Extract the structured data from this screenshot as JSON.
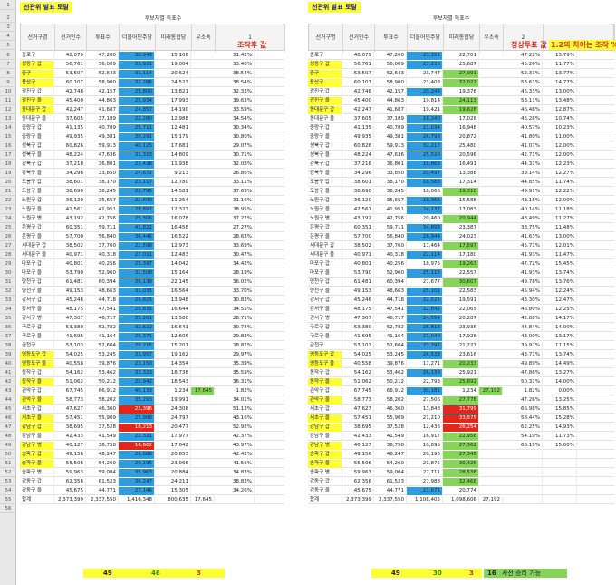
{
  "left": {
    "title": "선관위 발표 토탈",
    "group_header": "후보자별 득표수",
    "headers": [
      "선거구명",
      "선거인수",
      "투표수",
      "더불어민주당",
      "미래통합당",
      "우소속"
    ],
    "extra_header": "1",
    "big_label": "조작후 값",
    "rows": [
      [
        "종로구",
        "48,079",
        "47,200",
        "30,943",
        "15,108",
        "31.42%"
      ],
      [
        "성동구 갑",
        "56,761",
        "56,009",
        "33,921",
        "19,004",
        "33.48%"
      ],
      [
        "중구",
        "53,507",
        "52,643",
        "31,114",
        "20,624",
        "38.54%"
      ],
      [
        "용산구",
        "60,107",
        "58,900",
        "32,286",
        "24,523",
        "38.54%"
      ],
      [
        "광진구 갑",
        "42,748",
        "42,157",
        "25,800",
        "13,821",
        "32.33%"
      ],
      [
        "광진구 을",
        "45,400",
        "44,863",
        "25,934",
        "17,993",
        "39.63%"
      ],
      [
        "동대문구 갑",
        "42,247",
        "41,687",
        "24,857",
        "14,190",
        "33.59%"
      ],
      [
        "동대문구 을",
        "37,605",
        "37,189",
        "22,280",
        "12,988",
        "34.54%"
      ],
      [
        "중랑구 갑",
        "41,135",
        "40,789",
        "25,711",
        "12,481",
        "30.34%"
      ],
      [
        "중랑구 을",
        "49,935",
        "49,381",
        "30,291",
        "15,179",
        "30.80%"
      ],
      [
        "성북구 갑",
        "60,826",
        "59,913",
        "40,125",
        "17,681",
        "29.07%"
      ],
      [
        "성북구 을",
        "48,224",
        "47,636",
        "31,313",
        "14,809",
        "30.71%"
      ],
      [
        "강북구 갑",
        "37,218",
        "36,801",
        "23,428",
        "11,938",
        "32.08%"
      ],
      [
        "강북구 을",
        "34,296",
        "33,850",
        "24,672",
        "9,213",
        "26.86%"
      ],
      [
        "도봉구 갑",
        "38,601",
        "38,170",
        "23,117",
        "12,780",
        "33.11%"
      ],
      [
        "도봉구 을",
        "38,690",
        "38,245",
        "22,795",
        "14,581",
        "37.69%"
      ],
      [
        "노원구 갑",
        "36,120",
        "35,657",
        "22,699",
        "11,254",
        "31.16%"
      ],
      [
        "노원구 을",
        "42,561",
        "41,951",
        "28,897",
        "12,323",
        "28.95%"
      ],
      [
        "노원구 병",
        "43,192",
        "42,756",
        "25,306",
        "16,078",
        "37.22%"
      ],
      [
        "은평구 갑",
        "60,351",
        "59,711",
        "41,822",
        "16,458",
        "27.27%"
      ],
      [
        "은평구 을",
        "57,700",
        "56,840",
        "36,445",
        "16,522",
        "28.63%"
      ],
      [
        "서대문구 갑",
        "38,502",
        "37,760",
        "22,598",
        "12,973",
        "33.69%"
      ],
      [
        "서대문구 을",
        "40,971",
        "40,318",
        "27,011",
        "12,483",
        "30.47%"
      ],
      [
        "마포구 갑",
        "40,801",
        "40,256",
        "25,397",
        "14,042",
        "34.42%"
      ],
      [
        "마포구 을",
        "53,790",
        "52,960",
        "32,508",
        "15,164",
        "28.19%"
      ],
      [
        "양천구 갑",
        "61,481",
        "60,394",
        "36,139",
        "22,145",
        "36.02%"
      ],
      [
        "양천구 을",
        "49,153",
        "48,663",
        "31,035",
        "16,564",
        "33.70%"
      ],
      [
        "강서구 갑",
        "45,246",
        "44,718",
        "29,825",
        "13,948",
        "30.83%"
      ],
      [
        "강서구 을",
        "48,175",
        "47,541",
        "29,835",
        "16,644",
        "34.55%"
      ],
      [
        "강서구 병",
        "47,307",
        "46,717",
        "31,261",
        "13,580",
        "28.71%"
      ],
      [
        "구로구 갑",
        "53,380",
        "52,782",
        "32,622",
        "16,641",
        "30.74%"
      ],
      [
        "구로구 을",
        "41,695",
        "41,164",
        "26,371",
        "12,606",
        "29.83%"
      ],
      [
        "금천구",
        "53,103",
        "52,604",
        "29,215",
        "15,201",
        "28.82%"
      ],
      [
        "영등포구 갑",
        "54,025",
        "53,245",
        "33,957",
        "19,162",
        "29.97%"
      ],
      [
        "영등포구 을",
        "40,558",
        "39,876",
        "23,150",
        "14,354",
        "35.39%"
      ],
      [
        "동작구 갑",
        "54,162",
        "53,462",
        "33,323",
        "18,736",
        "35.59%"
      ],
      [
        "동작구 을",
        "51,062",
        "50,212",
        "29,942",
        "18,543",
        "36.31%"
      ],
      [
        "관악구 갑",
        "67,745",
        "66,912",
        "40,133",
        "1,234",
        "1.82%"
      ],
      [
        "관악구 을",
        "58,773",
        "58,202",
        "35,293",
        "19,991",
        "34.01%"
      ],
      [
        "서초구 갑",
        "47,627",
        "46,360",
        "21,396",
        "24,308",
        "51.13%"
      ],
      [
        "서초구 을",
        "57,451",
        "55,909",
        "25,988",
        "24,797",
        "43.16%"
      ],
      [
        "강남구 갑",
        "38,695",
        "37,528",
        "18,213",
        "20,477",
        "52.92%"
      ],
      [
        "강남구 을",
        "42,433",
        "41,549",
        "22,321",
        "17,977",
        "42.37%"
      ],
      [
        "강남구 병",
        "40,127",
        "38,758",
        "16,662",
        "17,642",
        "43.97%"
      ],
      [
        "송파구 갑",
        "49,156",
        "48,247",
        "26,688",
        "20,853",
        "42.42%"
      ],
      [
        "송파구 을",
        "55,506",
        "54,260",
        "29,195",
        "23,066",
        "41.56%"
      ],
      [
        "송파구 병",
        "59,963",
        "59,004",
        "35,963",
        "20,884",
        "34.83%"
      ],
      [
        "강동구 갑",
        "62,356",
        "61,523",
        "36,247",
        "24,211",
        "38.83%"
      ],
      [
        "강동구 을",
        "45,675",
        "44,771",
        "27,146",
        "15,305",
        "34.26%"
      ],
      [
        "합계",
        "2,373,399",
        "2,337,550",
        "1,416,348",
        "800,635",
        ""
      ]
    ],
    "independent_value": "17,645",
    "sum_indep": "17,645",
    "summary": [
      "49",
      "46",
      "3"
    ]
  },
  "right": {
    "title": "선관위 발표 토탈",
    "group_header": "후보자별 득표수",
    "headers": [
      "선거구명",
      "선거인수",
      "투표수",
      "더불어민주당",
      "미래통합당",
      "우소속"
    ],
    "extra_header": "2",
    "big_label": "정상투표 값",
    "diff_label": "1.2의 차이는 조작 %",
    "rows": [
      [
        "종로구",
        "48,079",
        "47,200",
        "23,351",
        "22,701",
        "47.22%",
        "15.79%"
      ],
      [
        "성동구 갑",
        "56,761",
        "56,009",
        "27,238",
        "25,687",
        "45.26%",
        "11.77%"
      ],
      [
        "중구",
        "53,507",
        "52,643",
        "23,747",
        "27,991",
        "52.31%",
        "13.77%"
      ],
      [
        "용산구",
        "60,107",
        "58,900",
        "23,408",
        "32,022",
        "53.61%",
        "14.77%"
      ],
      [
        "광진구 갑",
        "42,748",
        "42,157",
        "20,243",
        "19,378",
        "45.33%",
        "13.00%"
      ],
      [
        "광진구 을",
        "45,400",
        "44,863",
        "19,814",
        "24,113",
        "53.11%",
        "13.48%"
      ],
      [
        "동대문구 갑",
        "42,247",
        "41,687",
        "19,421",
        "19,626",
        "46.46%",
        "12.87%"
      ],
      [
        "동대문구 을",
        "37,605",
        "37,189",
        "18,240",
        "17,028",
        "45.28%",
        "10.74%"
      ],
      [
        "중랑구 갑",
        "41,135",
        "40,789",
        "21,034",
        "16,948",
        "40.57%",
        "10.23%"
      ],
      [
        "중랑구 을",
        "49,935",
        "49,381",
        "26,798",
        "20,872",
        "41.80%",
        "11.00%"
      ],
      [
        "성북구 갑",
        "60,826",
        "59,913",
        "32,217",
        "25,480",
        "41.07%",
        "12.00%"
      ],
      [
        "성북구 을",
        "48,224",
        "47,636",
        "25,526",
        "20,596",
        "42.71%",
        "12.00%"
      ],
      [
        "강북구 갑",
        "37,218",
        "36,801",
        "18,863",
        "16,491",
        "44.31%",
        "12.23%"
      ],
      [
        "강북구 을",
        "34,296",
        "33,850",
        "20,497",
        "13,388",
        "39.14%",
        "12.27%"
      ],
      [
        "도봉구 갑",
        "38,601",
        "38,170",
        "18,583",
        "17,314",
        "44.85%",
        "11.74%"
      ],
      [
        "도봉구 을",
        "38,690",
        "38,245",
        "18,066",
        "19,310",
        "49.91%",
        "12.22%"
      ],
      [
        "노원구 갑",
        "36,120",
        "35,657",
        "18,365",
        "15,588",
        "43.16%",
        "12.00%"
      ],
      [
        "노원구 을",
        "42,561",
        "41,951",
        "24,137",
        "17,083",
        "40.14%",
        "11.18%"
      ],
      [
        "노원구 병",
        "43,192",
        "42,756",
        "20,460",
        "20,944",
        "48.49%",
        "11.27%"
      ],
      [
        "은평구 갑",
        "60,351",
        "59,711",
        "34,893",
        "23,387",
        "38.75%",
        "11.48%"
      ],
      [
        "은평구 을",
        "57,700",
        "56,840",
        "28,944",
        "24,023",
        "41.63%",
        "13.00%"
      ],
      [
        "서대문구 갑",
        "38,502",
        "37,760",
        "17,464",
        "17,597",
        "45.71%",
        "12.01%"
      ],
      [
        "서대문구 을",
        "40,971",
        "40,318",
        "22,114",
        "17,180",
        "41.93%",
        "11.47%"
      ],
      [
        "마포구 갑",
        "40,801",
        "40,256",
        "18,975",
        "19,263",
        "47.72%",
        "15.45%"
      ],
      [
        "마포구 을",
        "53,790",
        "52,960",
        "25,115",
        "22,557",
        "41.93%",
        "13.74%"
      ],
      [
        "양천구 갑",
        "61,481",
        "60,394",
        "27,677",
        "30,607",
        "49.78%",
        "13.76%"
      ],
      [
        "양천구 을",
        "49,153",
        "48,663",
        "25,101",
        "22,583",
        "45.94%",
        "12.24%"
      ],
      [
        "강서구 갑",
        "45,246",
        "44,718",
        "22,525",
        "19,591",
        "43.30%",
        "12.47%"
      ],
      [
        "강서구 을",
        "48,175",
        "47,541",
        "22,842",
        "22,065",
        "46.80%",
        "12.25%"
      ],
      [
        "강서구 병",
        "47,307",
        "46,717",
        "24,554",
        "20,287",
        "42.88%",
        "14.17%"
      ],
      [
        "구로구 갑",
        "53,380",
        "52,782",
        "25,813",
        "23,936",
        "44.84%",
        "14.00%"
      ],
      [
        "구로구 을",
        "41,695",
        "41,164",
        "21,049",
        "17,928",
        "43.00%",
        "13.17%"
      ],
      [
        "금천구",
        "53,103",
        "52,604",
        "23,297",
        "21,227",
        "39.97%",
        "11.15%"
      ],
      [
        "영등포구 갑",
        "54,025",
        "53,245",
        "26,533",
        "23,616",
        "43.71%",
        "13.74%"
      ],
      [
        "영등포구 을",
        "40,558",
        "39,876",
        "17,271",
        "20,233",
        "49.89%",
        "14.49%"
      ],
      [
        "동작구 갑",
        "54,162",
        "53,462",
        "26,138",
        "25,921",
        "47.86%",
        "13.27%"
      ],
      [
        "동작구 을",
        "51,062",
        "50,212",
        "22,793",
        "25,692",
        "50.31%",
        "14.00%"
      ],
      [
        "관악구 갑",
        "67,745",
        "66,912",
        "30,181",
        "1,234",
        "1.82%",
        "0.00%"
      ],
      [
        "관악구 을",
        "58,773",
        "58,202",
        "27,506",
        "27,778",
        "47.26%",
        "13.25%"
      ],
      [
        "서초구 갑",
        "47,627",
        "46,360",
        "13,848",
        "31,799",
        "66.98%",
        "15.85%"
      ],
      [
        "서초구 을",
        "57,451",
        "55,909",
        "21,210",
        "33,575",
        "58.44%",
        "15.28%"
      ],
      [
        "강남구 갑",
        "38,695",
        "37,528",
        "12,436",
        "26,254",
        "62.25%",
        "14.93%"
      ],
      [
        "강남구 을",
        "42,433",
        "41,549",
        "16,917",
        "22,956",
        "54.10%",
        "11.73%"
      ],
      [
        "강남구 병",
        "40,127",
        "38,758",
        "10,895",
        "27,362",
        "68.19%",
        "15.00%"
      ],
      [
        "송파구 갑",
        "49,156",
        "48,247",
        "20,196",
        "27,345",
        "",
        ""
      ],
      [
        "송파구 을",
        "55,506",
        "54,260",
        "21,875",
        "30,426",
        "",
        ""
      ],
      [
        "송파구 병",
        "59,963",
        "59,004",
        "27,711",
        "28,536",
        "",
        ""
      ],
      [
        "강동구 갑",
        "62,356",
        "61,523",
        "27,988",
        "32,468",
        "",
        ""
      ],
      [
        "강동구 을",
        "45,675",
        "44,771",
        "21,671",
        "20,774",
        "",
        ""
      ],
      [
        "합계",
        "2,373,399",
        "2,337,550",
        "1,108,405",
        "1,098,606",
        "",
        ""
      ]
    ],
    "independent_value": "27,192",
    "sum_indep": "27,192",
    "summary": [
      "49",
      "30",
      "3"
    ],
    "summary_extra_num": "16",
    "summary_extra_text": "사전 승리 가능"
  },
  "colors": {
    "blue": "#2f9ce0",
    "green": "#86d45a",
    "red": "#e3261c",
    "yellow": "#ffff33"
  }
}
